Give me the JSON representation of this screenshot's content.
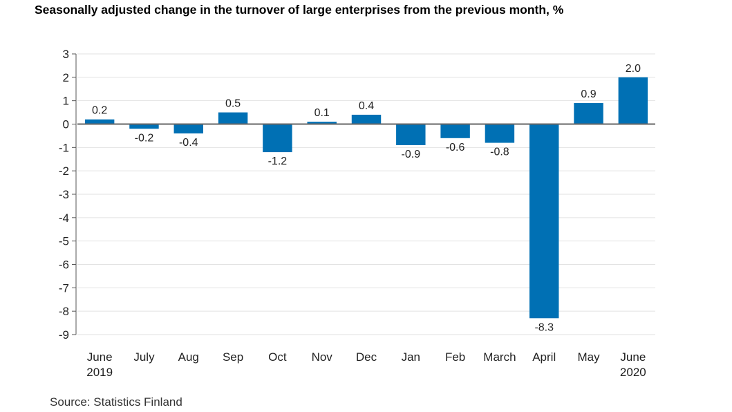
{
  "chart_data": {
    "type": "bar",
    "title": "Seasonally adjusted change in the turnover of large enterprises from the previous month, %",
    "source": "Source: Statistics Finland",
    "categories": [
      [
        "June",
        "2019"
      ],
      [
        "July"
      ],
      [
        "Aug"
      ],
      [
        "Sep"
      ],
      [
        "Oct"
      ],
      [
        "Nov"
      ],
      [
        "Dec"
      ],
      [
        "Jan"
      ],
      [
        "Feb"
      ],
      [
        "March"
      ],
      [
        "April"
      ],
      [
        "May"
      ],
      [
        "June",
        "2020"
      ]
    ],
    "values": [
      0.2,
      -0.2,
      -0.4,
      0.5,
      -1.2,
      0.1,
      0.4,
      -0.9,
      -0.6,
      -0.8,
      -8.3,
      0.9,
      2.0
    ],
    "value_labels": [
      "0.2",
      "-0.2",
      "-0.4",
      "0.5",
      "-1.2",
      "0.1",
      "0.4",
      "-0.9",
      "-0.6",
      "-0.8",
      "-8.3",
      "0.9",
      "2.0"
    ],
    "y_ticks": [
      3,
      2,
      1,
      0,
      -1,
      -2,
      -3,
      -4,
      -5,
      -6,
      -7,
      -8,
      -9
    ],
    "ylim": [
      -9,
      3
    ],
    "xlabel": "",
    "ylabel": "",
    "grid": true,
    "legend": "none",
    "colors": {
      "bar": "#0070b4",
      "grid": "#e2e2e2",
      "axis": "#555555",
      "zero_line": "#666666"
    }
  }
}
